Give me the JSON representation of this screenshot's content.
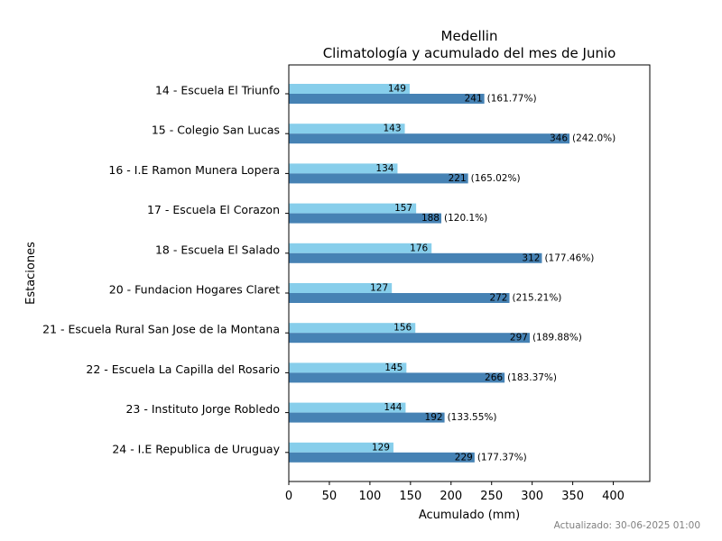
{
  "chart_data": {
    "type": "bar",
    "orientation": "horizontal",
    "title": [
      "Medellin",
      "Climatología y acumulado del mes de Junio"
    ],
    "xlabel": "Acumulado (mm)",
    "ylabel": "Estaciones",
    "xlim": [
      0,
      445
    ],
    "xticks": [
      0,
      50,
      100,
      150,
      200,
      250,
      300,
      350,
      400
    ],
    "grid": false,
    "legend": "none",
    "categories": [
      "14 - Escuela El Triunfo",
      "15 - Colegio San Lucas",
      "16 - I.E Ramon Munera Lopera",
      "17 - Escuela El Corazon",
      "18 - Escuela El Salado",
      "20 - Fundacion Hogares Claret",
      "21 - Escuela Rural San Jose de la Montana",
      "22 - Escuela La Capilla del Rosario",
      "23 - Instituto Jorge Robledo",
      "24 - I.E Republica de Uruguay"
    ],
    "series": [
      {
        "color": "#87ceeb",
        "values": [
          149,
          143,
          134,
          157,
          176,
          127,
          156,
          145,
          144,
          129
        ],
        "labels": [
          "149",
          "143",
          "134",
          "157",
          "176",
          "127",
          "156",
          "145",
          "144",
          "129"
        ]
      },
      {
        "color": "#4682b4",
        "values": [
          241,
          346,
          221,
          188,
          312,
          272,
          297,
          266,
          192,
          229
        ],
        "labels": [
          "241",
          "346",
          "221",
          "188",
          "312",
          "272",
          "297",
          "266",
          "192",
          "229"
        ],
        "percent_labels": [
          "(161.77%)",
          "(242.0%)",
          "(165.02%)",
          "(120.1%)",
          "(177.46%)",
          "(215.21%)",
          "(189.88%)",
          "(183.37%)",
          "(133.55%)",
          "(177.37%)"
        ]
      }
    ]
  },
  "footer": {
    "updated": "Actualizado: 30-06-2025 01:00"
  }
}
